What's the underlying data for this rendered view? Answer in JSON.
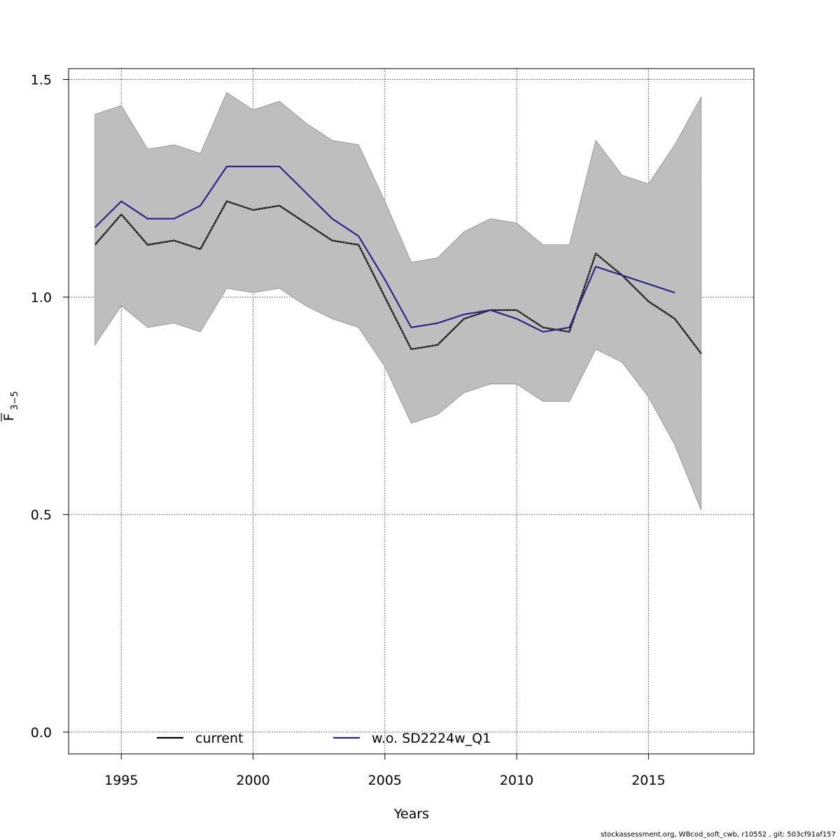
{
  "chart_data": {
    "type": "line",
    "title": "",
    "xlabel": "Years",
    "ylabel": {
      "base": "F",
      "subscript": "3−5"
    },
    "xlim": [
      1993,
      2019
    ],
    "ylim": [
      -0.05,
      1.525
    ],
    "xticks": [
      "1995",
      "2000",
      "2005",
      "2010",
      "2015"
    ],
    "yticks": [
      "0.0",
      "0.5",
      "1.0",
      "1.5"
    ],
    "grid": true,
    "legend_position": "bottom",
    "confidence_band": {
      "color": "#bebebe",
      "years": [
        1994,
        1995,
        1996,
        1997,
        1998,
        1999,
        2000,
        2001,
        2002,
        2003,
        2004,
        2005,
        2006,
        2007,
        2008,
        2009,
        2010,
        2011,
        2012,
        2013,
        2014,
        2015,
        2016,
        2017
      ],
      "upper": [
        1.42,
        1.44,
        1.34,
        1.35,
        1.33,
        1.47,
        1.43,
        1.45,
        1.4,
        1.36,
        1.35,
        1.22,
        1.08,
        1.09,
        1.15,
        1.18,
        1.17,
        1.12,
        1.12,
        1.36,
        1.28,
        1.26,
        1.35,
        1.46
      ],
      "lower": [
        0.89,
        0.98,
        0.93,
        0.94,
        0.92,
        1.02,
        1.01,
        1.02,
        0.98,
        0.95,
        0.93,
        0.84,
        0.71,
        0.73,
        0.78,
        0.8,
        0.8,
        0.76,
        0.76,
        0.88,
        0.85,
        0.77,
        0.66,
        0.51
      ]
    },
    "series": [
      {
        "name": "current",
        "color": "#000000",
        "years": [
          1994,
          1995,
          1996,
          1997,
          1998,
          1999,
          2000,
          2001,
          2002,
          2003,
          2004,
          2005,
          2006,
          2007,
          2008,
          2009,
          2010,
          2011,
          2012,
          2013,
          2014,
          2015,
          2016,
          2017
        ],
        "values": [
          1.12,
          1.19,
          1.12,
          1.13,
          1.11,
          1.22,
          1.2,
          1.21,
          1.17,
          1.13,
          1.12,
          1.0,
          0.88,
          0.89,
          0.95,
          0.97,
          0.97,
          0.93,
          0.92,
          1.1,
          1.05,
          0.99,
          0.95,
          0.87
        ]
      },
      {
        "name": "w.o. SD2224w_Q1",
        "color": "#2b2688",
        "years": [
          1994,
          1995,
          1996,
          1997,
          1998,
          1999,
          2000,
          2001,
          2002,
          2003,
          2004,
          2005,
          2006,
          2007,
          2008,
          2009,
          2010,
          2011,
          2012,
          2013,
          2014,
          2015,
          2016
        ],
        "values": [
          1.16,
          1.22,
          1.18,
          1.18,
          1.21,
          1.3,
          1.3,
          1.3,
          1.24,
          1.18,
          1.14,
          1.04,
          0.93,
          0.94,
          0.96,
          0.97,
          0.95,
          0.92,
          0.93,
          1.07,
          1.05,
          1.03,
          1.01
        ]
      }
    ]
  },
  "footer": {
    "text": "stockassessment.org, WBcod_soft_cwb, r10552 , git: 503cf91af157"
  }
}
